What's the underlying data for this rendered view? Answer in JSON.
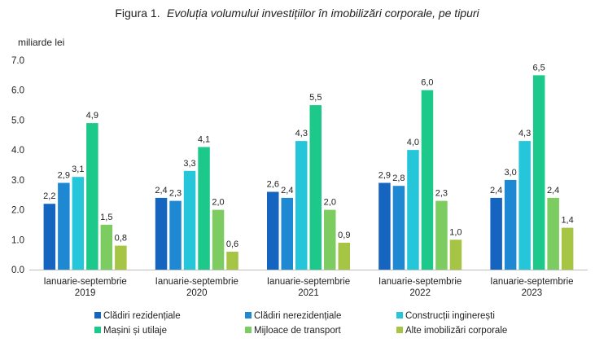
{
  "chart_data": {
    "type": "bar",
    "title_prefix": "Figura 1.",
    "title": "Evoluția volumului investițiilor în imobilizări corporale, pe tipuri",
    "ylabel": "miliarde lei",
    "xlabel": "",
    "ylim": [
      0,
      7
    ],
    "yticks": [
      "0.0",
      "1.0",
      "2.0",
      "3.0",
      "4.0",
      "5.0",
      "6.0",
      "7.0"
    ],
    "grid": false,
    "legend_position": "bottom",
    "categories": [
      [
        "Ianuarie-septembrie",
        "2019"
      ],
      [
        "Ianuarie-septembrie",
        "2020"
      ],
      [
        "Ianuarie-septembrie",
        "2021"
      ],
      [
        "Ianuarie-septembrie",
        "2022"
      ],
      [
        "Ianuarie-septembrie",
        "2023"
      ]
    ],
    "series": [
      {
        "name": "Clădiri rezidențiale",
        "color": "#1565c0",
        "values": [
          2.2,
          2.4,
          2.6,
          2.9,
          2.4
        ],
        "labels": [
          "2,2",
          "2,4",
          "2,6",
          "2,9",
          "2,4"
        ]
      },
      {
        "name": "Clădiri nerezidențiale",
        "color": "#1e88d2",
        "values": [
          2.9,
          2.3,
          2.4,
          2.8,
          3.0
        ],
        "labels": [
          "2,9",
          "2,3",
          "2,4",
          "2,8",
          "3,0"
        ]
      },
      {
        "name": "Construcții inginerești",
        "color": "#26c6da",
        "values": [
          3.1,
          3.3,
          4.3,
          4.0,
          4.3
        ],
        "labels": [
          "3,1",
          "3,3",
          "4,3",
          "4,0",
          "4,3"
        ]
      },
      {
        "name": "Mașini și utilaje",
        "color": "#1dc98a",
        "values": [
          4.9,
          4.1,
          5.5,
          6.0,
          6.5
        ],
        "labels": [
          "4,9",
          "4,1",
          "5,5",
          "6,0",
          "6,5"
        ]
      },
      {
        "name": "Mijloace de transport",
        "color": "#7ccc62",
        "values": [
          1.5,
          2.0,
          2.0,
          2.3,
          2.4
        ],
        "labels": [
          "1,5",
          "2,0",
          "2,0",
          "2,3",
          "2,4"
        ]
      },
      {
        "name": "Alte imobilizări corporale",
        "color": "#a6c545",
        "values": [
          0.8,
          0.6,
          0.9,
          1.0,
          1.4
        ],
        "labels": [
          "0,8",
          "0,6",
          "0,9",
          "1,0",
          "1,4"
        ]
      }
    ]
  }
}
